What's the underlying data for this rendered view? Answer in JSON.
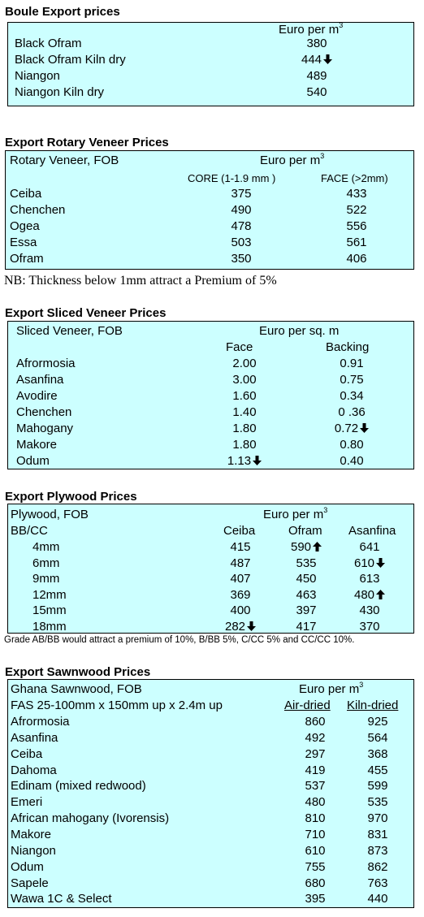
{
  "boule": {
    "title": "Boule Export prices",
    "unit": "Euro per m",
    "unit_sup": "3",
    "rows": [
      {
        "name": "Black Ofram",
        "price": "380",
        "trend": ""
      },
      {
        "name": "Black Ofram  Kiln dry",
        "price": "444",
        "trend": "down"
      },
      {
        "name": "Niangon",
        "price": "489",
        "trend": ""
      },
      {
        "name": "Niangon Kiln dry",
        "price": "540",
        "trend": ""
      }
    ]
  },
  "rotary": {
    "title": "Export Rotary Veneer Prices",
    "header_label": "Rotary Veneer,  FOB",
    "unit": "Euro  per m",
    "unit_sup": "3",
    "col_core": "CORE (1-1.9 mm )",
    "col_face": "FACE (>2mm)",
    "rows": [
      {
        "name": "Ceiba",
        "core": "375",
        "face": "433"
      },
      {
        "name": "Chenchen",
        "core": "490",
        "face": "522"
      },
      {
        "name": "Ogea",
        "core": "478",
        "face": "556"
      },
      {
        "name": "Essa",
        "core": "503",
        "face": "561"
      },
      {
        "name": "Ofram",
        "core": "350",
        "face": "406"
      }
    ],
    "note": "NB: Thickness below 1mm attract a Premium of 5%"
  },
  "sliced": {
    "title": "Export Sliced Veneer Prices",
    "header_label": "Sliced Veneer, FOB",
    "unit": "Euro per sq. m",
    "col_face": "Face",
    "col_backing": "Backing",
    "rows": [
      {
        "name": "Afrormosia",
        "face": "2.00",
        "face_trend": "",
        "backing": "0.91",
        "backing_trend": ""
      },
      {
        "name": "Asanfina",
        "face": "3.00",
        "face_trend": "",
        "backing": "0.75",
        "backing_trend": ""
      },
      {
        "name": "Avodire",
        "face": "1.60",
        "face_trend": "",
        "backing": "0.34",
        "backing_trend": ""
      },
      {
        "name": "Chenchen",
        "face": "1.40",
        "face_trend": "",
        "backing": "0 .36",
        "backing_trend": ""
      },
      {
        "name": "Mahogany",
        "face": "1.80",
        "face_trend": "",
        "backing": "0.72",
        "backing_trend": "down"
      },
      {
        "name": "Makore",
        "face": "1.80",
        "face_trend": "",
        "backing": "0.80",
        "backing_trend": ""
      },
      {
        "name": "Odum",
        "face": "1.13",
        "face_trend": "down",
        "backing": "0.40",
        "backing_trend": ""
      }
    ]
  },
  "plywood": {
    "title": "Export Plywood Prices",
    "header_label": "Plywood, FOB",
    "unit": "Euro per m",
    "unit_sup": "3",
    "grade_label": "BB/CC",
    "col_1": "Ceiba",
    "col_2": "Ofram",
    "col_3": "Asanfina",
    "rows": [
      {
        "size": "4mm",
        "ceiba": "415",
        "ceiba_trend": "",
        "ofram": "590",
        "ofram_trend": "up",
        "asanfina": "641",
        "asanfina_trend": ""
      },
      {
        "size": "6mm",
        "ceiba": "487",
        "ceiba_trend": "",
        "ofram": "535",
        "ofram_trend": "",
        "asanfina": "610",
        "asanfina_trend": "down"
      },
      {
        "size": "9mm",
        "ceiba": "407",
        "ceiba_trend": "",
        "ofram": "450",
        "ofram_trend": "",
        "asanfina": "613",
        "asanfina_trend": ""
      },
      {
        "size": "12mm",
        "ceiba": "369",
        "ceiba_trend": "",
        "ofram": "463",
        "ofram_trend": "",
        "asanfina": "480",
        "asanfina_trend": "up"
      },
      {
        "size": "15mm",
        "ceiba": "400",
        "ceiba_trend": "",
        "ofram": "397",
        "ofram_trend": "",
        "asanfina": "430",
        "asanfina_trend": ""
      },
      {
        "size": "18mm",
        "ceiba": "282",
        "ceiba_trend": "down",
        "ofram": "417",
        "ofram_trend": "",
        "asanfina": "370",
        "asanfina_trend": ""
      }
    ],
    "note": "Grade AB/BB would attract a premium of 10%, B/BB 5%, C/CC 5% and CC/CC 10%."
  },
  "sawnwood": {
    "title": "Export Sawnwood Prices",
    "header_label": "Ghana Sawnwood, FOB",
    "unit": "Euro per m",
    "unit_sup": "3",
    "spec_label": "FAS 25-100mm x 150mm up x 2.4m up",
    "col_air": "Air-dried",
    "col_kiln": "Kiln-dried",
    "rows": [
      {
        "name": "Afrormosia",
        "air": "860",
        "kiln": "925"
      },
      {
        "name": "Asanfina",
        "air": "492",
        "kiln": "564"
      },
      {
        "name": "Ceiba",
        "air": "297",
        "kiln": "368"
      },
      {
        "name": "Dahoma",
        "air": "419",
        "kiln": "455"
      },
      {
        "name": "Edinam (mixed redwood)",
        "air": "537",
        "kiln": "599"
      },
      {
        "name": "Emeri",
        "air": "480",
        "kiln": "535"
      },
      {
        "name": "African mahogany (Ivorensis)",
        "air": "810",
        "kiln": "970"
      },
      {
        "name": "Makore",
        "air": "710",
        "kiln": "831"
      },
      {
        "name": "Niangon",
        "air": "610",
        "kiln": "873"
      },
      {
        "name": "Odum",
        "air": "755",
        "kiln": "862"
      },
      {
        "name": "Sapele",
        "air": "680",
        "kiln": "763"
      },
      {
        "name": "Wawa 1C & Select",
        "air": "395",
        "kiln": "440"
      }
    ]
  }
}
